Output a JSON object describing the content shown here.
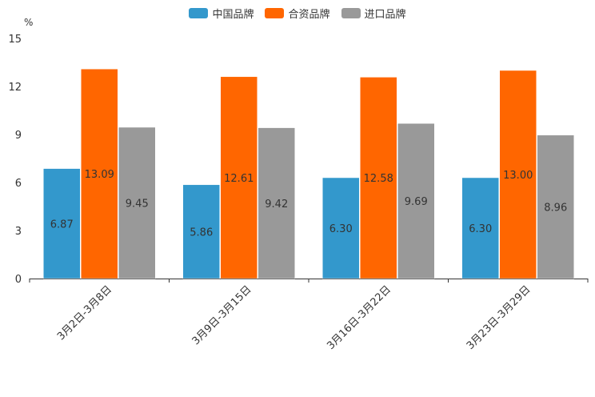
{
  "chart_data": {
    "type": "bar",
    "ylabel": "%",
    "ylim": [
      0,
      15
    ],
    "yticks": [
      "0",
      "3",
      "6",
      "9",
      "12",
      "15"
    ],
    "categories": [
      "3月2日-3月8日",
      "3月9日-3月15日",
      "3月16日-3月22日",
      "3月23日-3月29日"
    ],
    "series": [
      {
        "name": "中国品牌",
        "color": "#3398CC",
        "values": [
          6.87,
          5.86,
          6.3,
          6.3
        ],
        "labels": [
          "6.87",
          "5.86",
          "6.30",
          "6.30"
        ]
      },
      {
        "name": "合资品牌",
        "color": "#FF6600",
        "values": [
          13.09,
          12.61,
          12.58,
          13.0
        ],
        "labels": [
          "13.09",
          "12.61",
          "12.58",
          "13.00"
        ]
      },
      {
        "name": "进口品牌",
        "color": "#999999",
        "values": [
          9.45,
          9.42,
          9.69,
          8.96
        ],
        "labels": [
          "9.45",
          "9.42",
          "9.69",
          "8.96"
        ]
      }
    ]
  }
}
